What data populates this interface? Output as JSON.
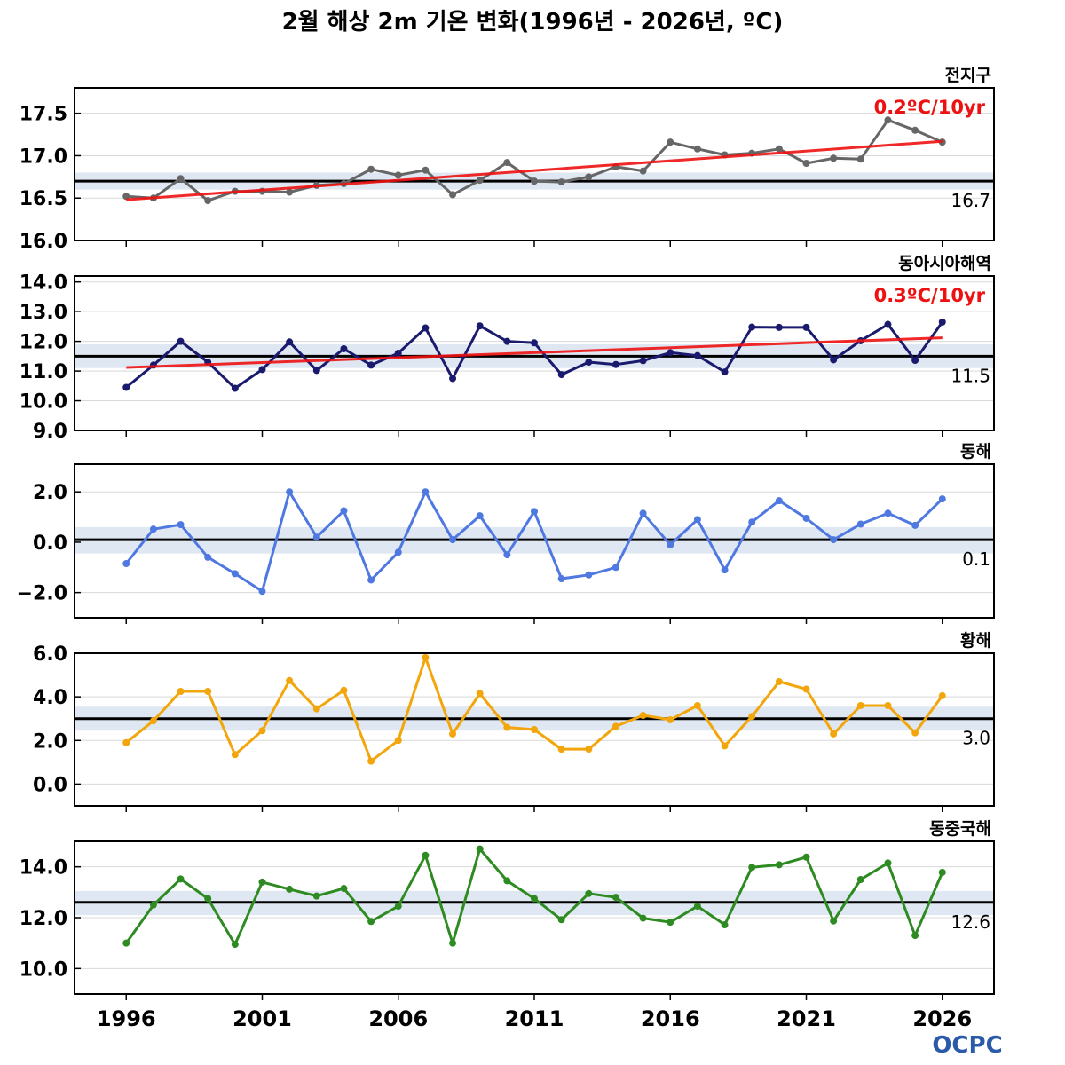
{
  "title": "2월 해상 2m 기온 변화(1996년 - 2026년, ºC)",
  "logo": "OCPC",
  "x_tick_labels": [
    "1996",
    "2001",
    "2006",
    "2011",
    "2016",
    "2021",
    "2026"
  ],
  "chart_data": [
    {
      "type": "line",
      "title": "전지구",
      "x": [
        1996,
        1997,
        1998,
        1999,
        2000,
        2001,
        2002,
        2003,
        2004,
        2005,
        2006,
        2007,
        2008,
        2009,
        2010,
        2011,
        2012,
        2013,
        2014,
        2015,
        2016,
        2017,
        2018,
        2019,
        2020,
        2021,
        2022,
        2023,
        2024,
        2025,
        2026
      ],
      "series": [
        {
          "color": "#666666",
          "values": [
            16.52,
            16.5,
            16.73,
            16.47,
            16.58,
            16.58,
            16.57,
            16.65,
            16.67,
            16.84,
            16.77,
            16.83,
            16.54,
            16.71,
            16.92,
            16.7,
            16.69,
            16.75,
            16.87,
            16.82,
            17.16,
            17.08,
            17.01,
            17.03,
            17.08,
            16.91,
            16.97,
            16.96,
            17.42,
            17.3,
            17.16
          ]
        }
      ],
      "mean": 16.7,
      "mean_label": "16.7",
      "mean_band": [
        16.6,
        16.8
      ],
      "trend": {
        "label": "0.2ºC/10yr",
        "start": 16.48,
        "end": 17.17,
        "color": "#ee1111"
      },
      "ylim": [
        16.0,
        17.8
      ],
      "yticks": [
        16.0,
        16.5,
        17.0,
        17.5
      ],
      "ytick_labels": [
        "16.0",
        "16.5",
        "17.0",
        "17.5"
      ],
      "grid": true
    },
    {
      "type": "line",
      "title": "동아시아해역",
      "x": [
        1996,
        1997,
        1998,
        1999,
        2000,
        2001,
        2002,
        2003,
        2004,
        2005,
        2006,
        2007,
        2008,
        2009,
        2010,
        2011,
        2012,
        2013,
        2014,
        2015,
        2016,
        2017,
        2018,
        2019,
        2020,
        2021,
        2022,
        2023,
        2024,
        2025,
        2026
      ],
      "series": [
        {
          "color": "#1a1a6e",
          "values": [
            10.45,
            11.2,
            12.0,
            11.3,
            10.42,
            11.05,
            11.98,
            11.02,
            11.75,
            11.2,
            11.6,
            12.45,
            10.75,
            12.52,
            12.0,
            11.95,
            10.88,
            11.3,
            11.22,
            11.35,
            11.62,
            11.52,
            10.97,
            12.48,
            12.47,
            12.47,
            11.38,
            12.02,
            12.57,
            11.36,
            12.65
          ]
        }
      ],
      "mean": 11.5,
      "mean_label": "11.5",
      "mean_band": [
        11.1,
        11.9
      ],
      "trend": {
        "label": "0.3ºC/10yr",
        "start": 11.12,
        "end": 12.12,
        "color": "#ee1111"
      },
      "ylim": [
        9.0,
        14.2
      ],
      "yticks": [
        9.0,
        10.0,
        11.0,
        12.0,
        13.0,
        14.0
      ],
      "ytick_labels": [
        "9.0",
        "10.0",
        "11.0",
        "12.0",
        "13.0",
        "14.0"
      ],
      "grid": true
    },
    {
      "type": "line",
      "title": "동해",
      "x": [
        1996,
        1997,
        1998,
        1999,
        2000,
        2001,
        2002,
        2003,
        2004,
        2005,
        2006,
        2007,
        2008,
        2009,
        2010,
        2011,
        2012,
        2013,
        2014,
        2015,
        2016,
        2017,
        2018,
        2019,
        2020,
        2021,
        2022,
        2023,
        2024,
        2025,
        2026
      ],
      "series": [
        {
          "color": "#4f78e0",
          "values": [
            -0.85,
            0.52,
            0.7,
            -0.6,
            -1.25,
            -1.95,
            2.0,
            0.2,
            1.25,
            -1.5,
            -0.4,
            2.0,
            0.1,
            1.05,
            -0.5,
            1.22,
            -1.45,
            -1.3,
            -1.0,
            1.15,
            -0.1,
            0.9,
            -1.1,
            0.8,
            1.65,
            0.95,
            0.1,
            0.72,
            1.15,
            0.67,
            1.72
          ]
        }
      ],
      "mean": 0.1,
      "mean_label": "0.1",
      "mean_band": [
        -0.45,
        0.6
      ],
      "ylim": [
        -3.0,
        3.1
      ],
      "yticks": [
        -2.0,
        0.0,
        2.0
      ],
      "ytick_labels": [
        "−2.0",
        "0.0",
        "2.0"
      ],
      "grid": true
    },
    {
      "type": "line",
      "title": "황해",
      "x": [
        1996,
        1997,
        1998,
        1999,
        2000,
        2001,
        2002,
        2003,
        2004,
        2005,
        2006,
        2007,
        2008,
        2009,
        2010,
        2011,
        2012,
        2013,
        2014,
        2015,
        2016,
        2017,
        2018,
        2019,
        2020,
        2021,
        2022,
        2023,
        2024,
        2025,
        2026
      ],
      "series": [
        {
          "color": "#f2a60c",
          "values": [
            1.9,
            2.9,
            4.25,
            4.25,
            1.35,
            2.45,
            4.75,
            3.45,
            4.3,
            1.05,
            2.0,
            5.8,
            2.3,
            4.15,
            2.6,
            2.5,
            1.6,
            1.6,
            2.65,
            3.15,
            2.95,
            3.6,
            1.75,
            3.1,
            4.7,
            4.35,
            2.3,
            3.6,
            3.6,
            2.35,
            4.05
          ]
        }
      ],
      "mean": 3.0,
      "mean_label": "3.0",
      "mean_band": [
        2.45,
        3.55
      ],
      "ylim": [
        -1.0,
        6.0
      ],
      "yticks": [
        0.0,
        2.0,
        4.0,
        6.0
      ],
      "ytick_labels": [
        "0.0",
        "2.0",
        "4.0",
        "6.0"
      ],
      "grid": true
    },
    {
      "type": "line",
      "title": "동중국해",
      "x": [
        1996,
        1997,
        1998,
        1999,
        2000,
        2001,
        2002,
        2003,
        2004,
        2005,
        2006,
        2007,
        2008,
        2009,
        2010,
        2011,
        2012,
        2013,
        2014,
        2015,
        2016,
        2017,
        2018,
        2019,
        2020,
        2021,
        2022,
        2023,
        2024,
        2025,
        2026
      ],
      "series": [
        {
          "color": "#2e8b22",
          "values": [
            11.0,
            12.5,
            13.52,
            12.75,
            10.95,
            13.4,
            13.12,
            12.85,
            13.15,
            11.85,
            12.45,
            14.45,
            11.0,
            14.7,
            13.45,
            12.75,
            11.92,
            12.95,
            12.8,
            11.98,
            11.82,
            12.45,
            11.72,
            13.98,
            14.08,
            14.38,
            11.87,
            13.5,
            14.15,
            11.3,
            13.78
          ]
        }
      ],
      "mean": 12.6,
      "mean_label": "12.6",
      "mean_band": [
        12.1,
        13.05
      ],
      "ylim": [
        9.0,
        15.0
      ],
      "yticks": [
        10.0,
        12.0,
        14.0
      ],
      "ytick_labels": [
        "10.0",
        "12.0",
        "14.0"
      ],
      "grid": true
    }
  ]
}
